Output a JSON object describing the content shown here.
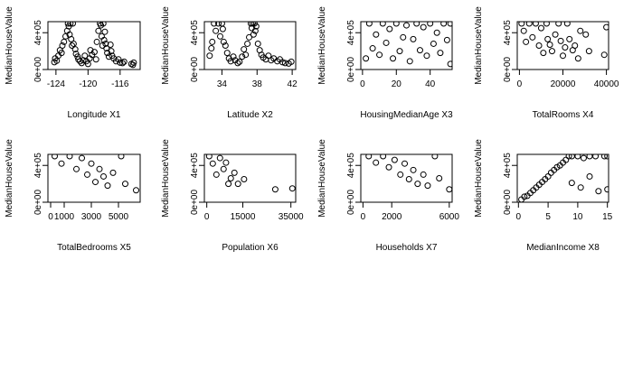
{
  "chart_data": [
    {
      "type": "scatter",
      "title": "",
      "xlabel": "Longitude X1",
      "ylabel": "MedianHouseValue",
      "xlim": [
        -125,
        -113.5
      ],
      "ylim": [
        0,
        520000
      ],
      "xticks": [
        {
          "value": -124,
          "label": "-124"
        },
        {
          "value": -120,
          "label": "-120"
        },
        {
          "value": -116,
          "label": "-116"
        }
      ],
      "yticks": [
        {
          "value": 0,
          "label": "0e+00"
        },
        {
          "value": 400000,
          "label": "4e+05"
        }
      ],
      "points": [
        [
          -124.2,
          80000
        ],
        [
          -124.1,
          120000
        ],
        [
          -123.9,
          95000
        ],
        [
          -123.7,
          150000
        ],
        [
          -123.5,
          210000
        ],
        [
          -123.3,
          180000
        ],
        [
          -123.2,
          260000
        ],
        [
          -123.0,
          300000
        ],
        [
          -122.8,
          360000
        ],
        [
          -122.6,
          420000
        ],
        [
          -122.5,
          500000
        ],
        [
          -122.4,
          470000
        ],
        [
          -122.3,
          380000
        ],
        [
          -122.2,
          500000
        ],
        [
          -122.1,
          330000
        ],
        [
          -122.0,
          260000
        ],
        [
          -121.9,
          500000
        ],
        [
          -121.8,
          280000
        ],
        [
          -121.6,
          220000
        ],
        [
          -121.5,
          170000
        ],
        [
          -121.3,
          140000
        ],
        [
          -121.2,
          110000
        ],
        [
          -121.0,
          90000
        ],
        [
          -120.8,
          70000
        ],
        [
          -120.6,
          100000
        ],
        [
          -120.4,
          150000
        ],
        [
          -120.2,
          90000
        ],
        [
          -120.0,
          60000
        ],
        [
          -119.8,
          120000
        ],
        [
          -119.7,
          210000
        ],
        [
          -119.5,
          160000
        ],
        [
          -119.2,
          190000
        ],
        [
          -119.0,
          110000
        ],
        [
          -118.9,
          300000
        ],
        [
          -118.7,
          420000
        ],
        [
          -118.5,
          500000
        ],
        [
          -118.4,
          480000
        ],
        [
          -118.3,
          360000
        ],
        [
          -118.2,
          260000
        ],
        [
          -118.1,
          500000
        ],
        [
          -118.0,
          320000
        ],
        [
          -117.9,
          410000
        ],
        [
          -117.8,
          280000
        ],
        [
          -117.7,
          230000
        ],
        [
          -117.6,
          180000
        ],
        [
          -117.4,
          140000
        ],
        [
          -117.2,
          270000
        ],
        [
          -117.1,
          200000
        ],
        [
          -117.0,
          150000
        ],
        [
          -116.8,
          120000
        ],
        [
          -116.5,
          90000
        ],
        [
          -116.2,
          110000
        ],
        [
          -116.0,
          75000
        ],
        [
          -115.7,
          70000
        ],
        [
          -115.5,
          85000
        ],
        [
          -114.6,
          60000
        ],
        [
          -114.4,
          50000
        ],
        [
          -114.3,
          75000
        ]
      ]
    },
    {
      "type": "scatter",
      "title": "",
      "xlabel": "Latitude X2",
      "ylabel": "MedianHouseValue",
      "xlim": [
        32,
        42.4
      ],
      "ylim": [
        0,
        520000
      ],
      "xticks": [
        {
          "value": 34,
          "label": "34"
        },
        {
          "value": 38,
          "label": "38"
        },
        {
          "value": 42,
          "label": "42"
        }
      ],
      "yticks": [
        {
          "value": 0,
          "label": "0e+00"
        },
        {
          "value": 400000,
          "label": "4e+05"
        }
      ],
      "points": [
        [
          32.6,
          150000
        ],
        [
          32.8,
          230000
        ],
        [
          32.9,
          300000
        ],
        [
          33.1,
          500000
        ],
        [
          33.3,
          420000
        ],
        [
          33.6,
          500000
        ],
        [
          33.8,
          360000
        ],
        [
          34.0,
          500000
        ],
        [
          34.1,
          440000
        ],
        [
          34.2,
          300000
        ],
        [
          34.4,
          260000
        ],
        [
          34.6,
          180000
        ],
        [
          34.8,
          120000
        ],
        [
          35.0,
          90000
        ],
        [
          35.3,
          140000
        ],
        [
          35.5,
          100000
        ],
        [
          35.8,
          70000
        ],
        [
          36.0,
          85000
        ],
        [
          36.3,
          140000
        ],
        [
          36.5,
          220000
        ],
        [
          36.7,
          160000
        ],
        [
          36.9,
          280000
        ],
        [
          37.1,
          350000
        ],
        [
          37.3,
          500000
        ],
        [
          37.4,
          450000
        ],
        [
          37.5,
          500000
        ],
        [
          37.6,
          380000
        ],
        [
          37.7,
          500000
        ],
        [
          37.8,
          420000
        ],
        [
          37.9,
          470000
        ],
        [
          38.1,
          280000
        ],
        [
          38.3,
          210000
        ],
        [
          38.5,
          160000
        ],
        [
          38.7,
          130000
        ],
        [
          39.0,
          110000
        ],
        [
          39.3,
          150000
        ],
        [
          39.6,
          100000
        ],
        [
          39.9,
          120000
        ],
        [
          40.3,
          90000
        ],
        [
          40.6,
          110000
        ],
        [
          40.9,
          80000
        ],
        [
          41.2,
          70000
        ],
        [
          41.6,
          65000
        ],
        [
          41.9,
          85000
        ]
      ]
    },
    {
      "type": "scatter",
      "title": "",
      "xlabel": "HousingMedianAge X3",
      "ylabel": "MedianHouseValue",
      "xlim": [
        -1,
        53
      ],
      "ylim": [
        0,
        520000
      ],
      "xticks": [
        {
          "value": 0,
          "label": "0"
        },
        {
          "value": 20,
          "label": "20"
        },
        {
          "value": 40,
          "label": "40"
        }
      ],
      "yticks": [
        {
          "value": 0,
          "label": "0e+00"
        },
        {
          "value": 400000,
          "label": "4e+05"
        }
      ],
      "points": [
        [
          2,
          120000
        ],
        [
          4,
          500000
        ],
        [
          6,
          230000
        ],
        [
          8,
          380000
        ],
        [
          10,
          160000
        ],
        [
          12,
          500000
        ],
        [
          14,
          290000
        ],
        [
          16,
          440000
        ],
        [
          18,
          120000
        ],
        [
          20,
          500000
        ],
        [
          22,
          200000
        ],
        [
          24,
          350000
        ],
        [
          26,
          480000
        ],
        [
          28,
          90000
        ],
        [
          30,
          330000
        ],
        [
          32,
          500000
        ],
        [
          34,
          210000
        ],
        [
          36,
          460000
        ],
        [
          38,
          150000
        ],
        [
          40,
          500000
        ],
        [
          42,
          280000
        ],
        [
          44,
          400000
        ],
        [
          46,
          180000
        ],
        [
          48,
          500000
        ],
        [
          50,
          320000
        ],
        [
          52,
          500000
        ],
        [
          52,
          60000
        ]
      ]
    },
    {
      "type": "scatter",
      "title": "",
      "xlabel": "TotalRooms X4",
      "ylabel": "MedianHouseValue",
      "xlim": [
        -1000,
        41000
      ],
      "ylim": [
        0,
        520000
      ],
      "xticks": [
        {
          "value": 0,
          "label": "0"
        },
        {
          "value": 20000,
          "label": "20000"
        },
        {
          "value": 40000,
          "label": "40000"
        }
      ],
      "yticks": [
        {
          "value": 0,
          "label": "0e+00"
        },
        {
          "value": 400000,
          "label": "4e+05"
        }
      ],
      "points": [
        [
          1000,
          500000
        ],
        [
          2000,
          420000
        ],
        [
          3000,
          300000
        ],
        [
          4500,
          500000
        ],
        [
          6000,
          350000
        ],
        [
          7500,
          500000
        ],
        [
          9000,
          260000
        ],
        [
          10000,
          450000
        ],
        [
          11000,
          180000
        ],
        [
          12500,
          500000
        ],
        [
          13000,
          330000
        ],
        [
          14000,
          270000
        ],
        [
          15000,
          200000
        ],
        [
          16500,
          380000
        ],
        [
          18000,
          500000
        ],
        [
          19000,
          310000
        ],
        [
          20000,
          150000
        ],
        [
          21000,
          240000
        ],
        [
          22000,
          500000
        ],
        [
          23000,
          330000
        ],
        [
          24500,
          210000
        ],
        [
          25500,
          260000
        ],
        [
          27000,
          120000
        ],
        [
          28000,
          420000
        ],
        [
          30500,
          380000
        ],
        [
          32000,
          200000
        ],
        [
          39000,
          160000
        ],
        [
          40000,
          460000
        ]
      ]
    },
    {
      "type": "scatter",
      "title": "",
      "xlabel": "TotalBedrooms X5",
      "ylabel": "MedianHouseValue",
      "xlim": [
        -200,
        6600
      ],
      "ylim": [
        0,
        520000
      ],
      "xticks": [
        {
          "value": 0,
          "label": "0"
        },
        {
          "value": 1000,
          "label": "1000"
        },
        {
          "value": 3000,
          "label": "3000"
        },
        {
          "value": 5000,
          "label": "5000"
        }
      ],
      "yticks": [
        {
          "value": 0,
          "label": "0e+00"
        },
        {
          "value": 400000,
          "label": "4e+05"
        }
      ],
      "points": [
        [
          300,
          500000
        ],
        [
          800,
          420000
        ],
        [
          1400,
          500000
        ],
        [
          1900,
          360000
        ],
        [
          2300,
          480000
        ],
        [
          2700,
          300000
        ],
        [
          3000,
          420000
        ],
        [
          3300,
          220000
        ],
        [
          3600,
          360000
        ],
        [
          3900,
          280000
        ],
        [
          4200,
          180000
        ],
        [
          4600,
          320000
        ],
        [
          5200,
          500000
        ],
        [
          5500,
          200000
        ],
        [
          6300,
          130000
        ]
      ]
    },
    {
      "type": "scatter",
      "title": "",
      "xlabel": "Population X6",
      "ylabel": "MedianHouseValue",
      "xlim": [
        -1000,
        37000
      ],
      "ylim": [
        0,
        520000
      ],
      "xticks": [
        {
          "value": 0,
          "label": "0"
        },
        {
          "value": 15000,
          "label": "15000"
        },
        {
          "value": 35000,
          "label": "35000"
        }
      ],
      "yticks": [
        {
          "value": 0,
          "label": "0e+00"
        },
        {
          "value": 400000,
          "label": "4e+05"
        }
      ],
      "points": [
        [
          1000,
          500000
        ],
        [
          2500,
          420000
        ],
        [
          4000,
          300000
        ],
        [
          5500,
          480000
        ],
        [
          7000,
          360000
        ],
        [
          8000,
          430000
        ],
        [
          9000,
          200000
        ],
        [
          10000,
          260000
        ],
        [
          11500,
          320000
        ],
        [
          13000,
          200000
        ],
        [
          15500,
          250000
        ],
        [
          28500,
          140000
        ],
        [
          35600,
          150000
        ]
      ]
    },
    {
      "type": "scatter",
      "title": "",
      "xlabel": "Households X7",
      "ylabel": "MedianHouseValue",
      "xlim": [
        -150,
        6200
      ],
      "ylim": [
        0,
        520000
      ],
      "xticks": [
        {
          "value": 0,
          "label": "0"
        },
        {
          "value": 2000,
          "label": "2000"
        },
        {
          "value": 6000,
          "label": "6000"
        }
      ],
      "yticks": [
        {
          "value": 0,
          "label": "0e+00"
        },
        {
          "value": 400000,
          "label": "4e+05"
        }
      ],
      "points": [
        [
          400,
          500000
        ],
        [
          900,
          430000
        ],
        [
          1400,
          500000
        ],
        [
          1800,
          380000
        ],
        [
          2200,
          460000
        ],
        [
          2600,
          300000
        ],
        [
          2900,
          420000
        ],
        [
          3200,
          250000
        ],
        [
          3500,
          350000
        ],
        [
          3800,
          200000
        ],
        [
          4200,
          300000
        ],
        [
          4500,
          180000
        ],
        [
          5000,
          500000
        ],
        [
          5300,
          260000
        ],
        [
          6000,
          140000
        ]
      ]
    },
    {
      "type": "scatter",
      "title": "",
      "xlabel": "MedianIncome X8",
      "ylabel": "MedianHouseValue",
      "xlim": [
        -0.2,
        15.2
      ],
      "ylim": [
        0,
        520000
      ],
      "xticks": [
        {
          "value": 0,
          "label": "0"
        },
        {
          "value": 5,
          "label": "5"
        },
        {
          "value": 10,
          "label": "10"
        },
        {
          "value": 15,
          "label": "15"
        }
      ],
      "yticks": [
        {
          "value": 0,
          "label": "0e+00"
        },
        {
          "value": 400000,
          "label": "4e+05"
        }
      ],
      "points": [
        [
          0.5,
          30000
        ],
        [
          1,
          60000
        ],
        [
          1.5,
          70000
        ],
        [
          2,
          100000
        ],
        [
          2.5,
          130000
        ],
        [
          3,
          160000
        ],
        [
          3.5,
          190000
        ],
        [
          4,
          220000
        ],
        [
          4.5,
          250000
        ],
        [
          5,
          280000
        ],
        [
          5.5,
          320000
        ],
        [
          6,
          350000
        ],
        [
          6.5,
          380000
        ],
        [
          7,
          400000
        ],
        [
          7.5,
          430000
        ],
        [
          8,
          460000
        ],
        [
          8.5,
          500000
        ],
        [
          9,
          500000
        ],
        [
          10,
          500000
        ],
        [
          11,
          480000
        ],
        [
          12,
          500000
        ],
        [
          13,
          500000
        ],
        [
          13.5,
          120000
        ],
        [
          14.5,
          500000
        ],
        [
          15,
          140000
        ],
        [
          15,
          500000
        ],
        [
          9,
          210000
        ],
        [
          10.5,
          160000
        ],
        [
          12,
          280000
        ]
      ]
    }
  ]
}
